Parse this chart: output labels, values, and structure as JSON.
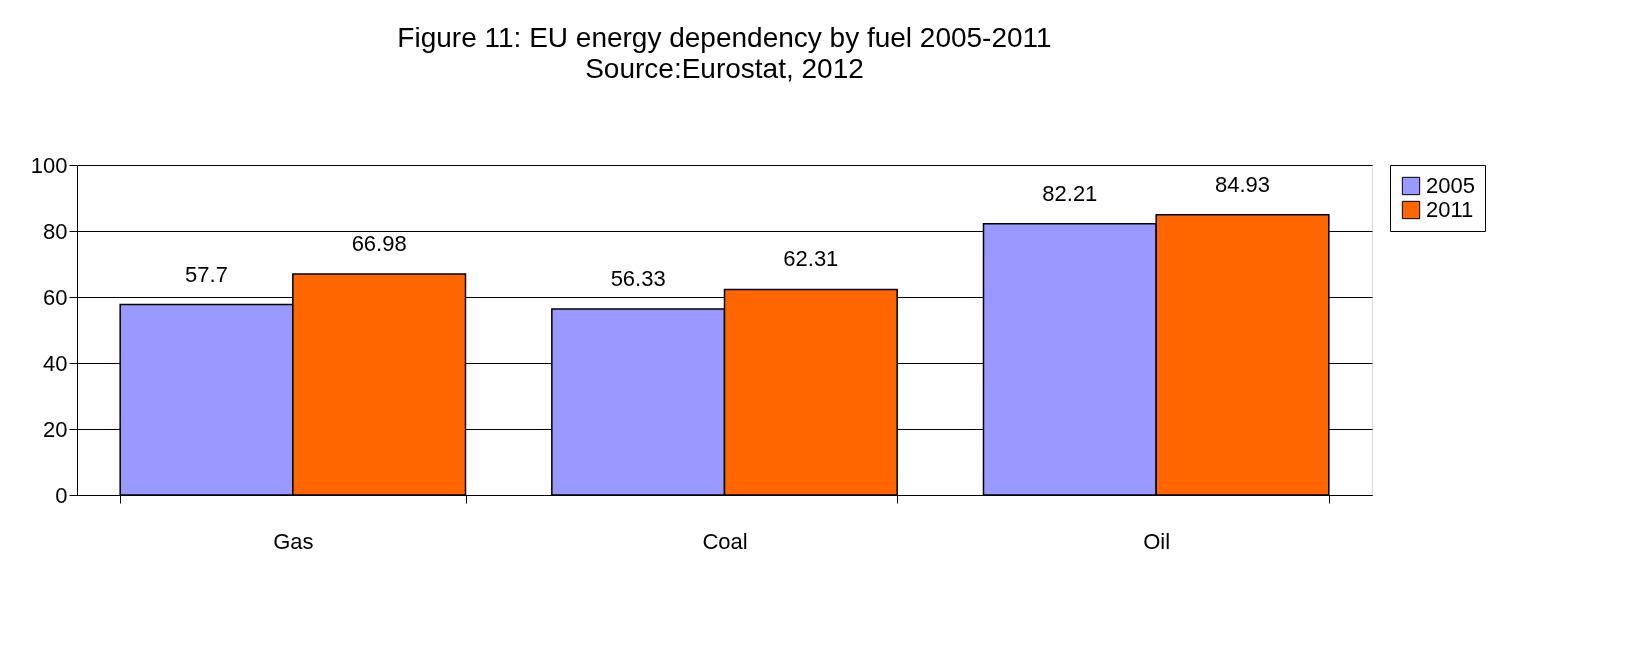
{
  "chart_data": {
    "type": "bar",
    "title": "Figure 11: EU energy dependency by fuel 2005-2011",
    "subtitle": "Source:Eurostat, 2012",
    "categories": [
      "Gas",
      "Coal",
      "Oil"
    ],
    "series": [
      {
        "name": "2005",
        "color": "#9999ff",
        "values": [
          57.7,
          56.33,
          82.21
        ]
      },
      {
        "name": "2011",
        "color": "#ff6600",
        "values": [
          66.98,
          62.31,
          84.93
        ]
      }
    ],
    "ylim": [
      0,
      100
    ],
    "yticks": [
      0,
      20,
      40,
      60,
      80,
      100
    ],
    "grid": "y",
    "legend": "right",
    "data_labels": true
  }
}
